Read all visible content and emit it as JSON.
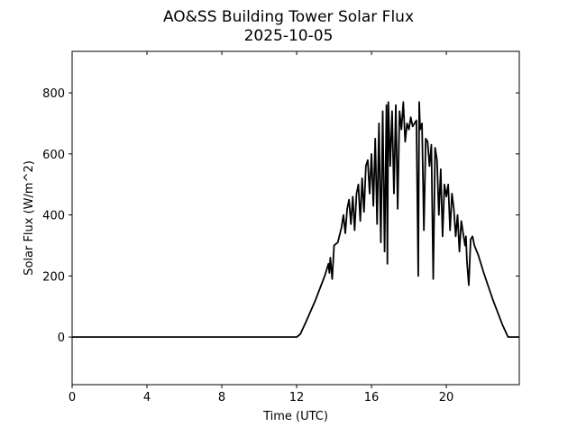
{
  "chart_data": {
    "type": "line",
    "title": "AO&SS Building Tower Solar Flux",
    "subtitle": "2025-10-05",
    "x_label": "Time (UTC)",
    "y_label": "Solar Flux (W/m^2)",
    "xlim": [
      0,
      23.9
    ],
    "xticks": [
      0,
      4,
      8,
      12,
      16,
      20
    ],
    "ylim": [
      -156,
      936
    ],
    "yticks": [
      0,
      200,
      400,
      600,
      800
    ],
    "series": [
      {
        "color": "#000000",
        "x": [
          0,
          12,
          12.2,
          12.5,
          13,
          13.5,
          13.7,
          13.75,
          13.8,
          13.9,
          14,
          14.2,
          14.4,
          14.5,
          14.6,
          14.7,
          14.8,
          14.9,
          15,
          15.1,
          15.2,
          15.3,
          15.4,
          15.5,
          15.6,
          15.7,
          15.8,
          15.9,
          16,
          16.1,
          16.2,
          16.3,
          16.4,
          16.5,
          16.6,
          16.7,
          16.8,
          16.85,
          16.9,
          17,
          17.1,
          17.2,
          17.3,
          17.4,
          17.5,
          17.6,
          17.7,
          17.8,
          17.9,
          18,
          18.1,
          18.2,
          18.3,
          18.4,
          18.5,
          18.55,
          18.6,
          18.7,
          18.8,
          18.9,
          19,
          19.1,
          19.2,
          19.3,
          19.4,
          19.5,
          19.6,
          19.7,
          19.8,
          19.9,
          20,
          20.1,
          20.2,
          20.3,
          20.4,
          20.5,
          20.6,
          20.7,
          20.8,
          20.9,
          21,
          21.05,
          21.1,
          21.2,
          21.3,
          21.4,
          21.5,
          21.7,
          22,
          22.5,
          23,
          23.3,
          23.9
        ],
        "values": [
          0,
          0,
          10,
          50,
          120,
          200,
          240,
          210,
          260,
          190,
          300,
          310,
          360,
          400,
          340,
          420,
          450,
          370,
          460,
          350,
          470,
          500,
          380,
          520,
          410,
          560,
          580,
          470,
          600,
          430,
          650,
          370,
          700,
          310,
          740,
          280,
          760,
          240,
          770,
          560,
          740,
          470,
          760,
          420,
          740,
          680,
          770,
          640,
          700,
          680,
          720,
          690,
          700,
          710,
          200,
          770,
          680,
          700,
          350,
          650,
          640,
          560,
          630,
          190,
          620,
          580,
          400,
          550,
          330,
          500,
          460,
          500,
          350,
          470,
          420,
          330,
          400,
          280,
          380,
          340,
          300,
          330,
          250,
          170,
          320,
          330,
          300,
          270,
          210,
          120,
          40,
          0,
          0
        ]
      }
    ]
  }
}
